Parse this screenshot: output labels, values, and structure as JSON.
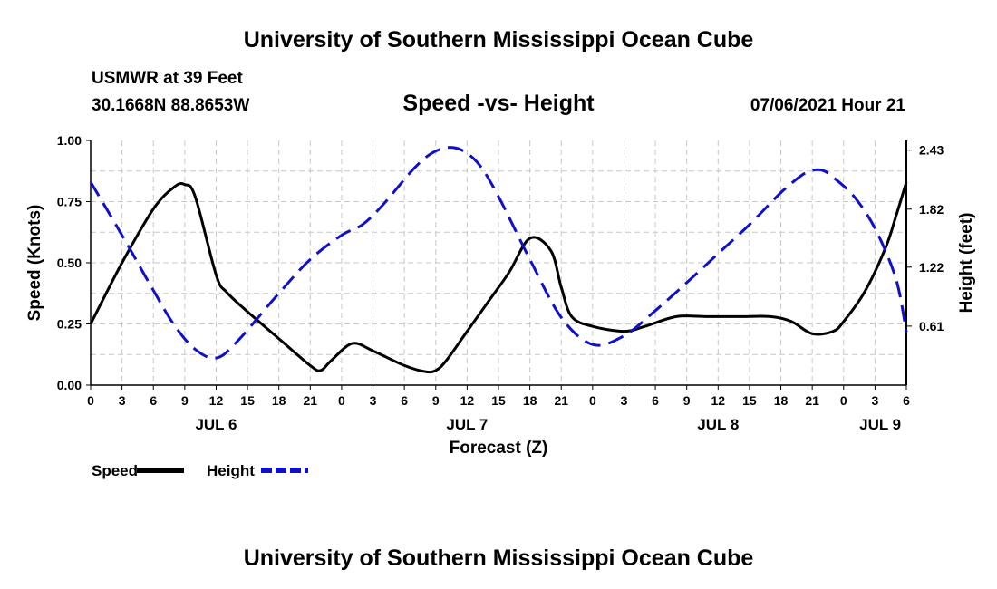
{
  "header": {
    "title": "University of Southern Mississippi Ocean Cube",
    "station": "USMWR at 39 Feet",
    "coords": "30.1668N  88.8653W",
    "date": "07/06/2021 Hour 21"
  },
  "footer": {
    "title": "University of Southern Mississippi Ocean Cube"
  },
  "chart_data": {
    "type": "line",
    "title": "Speed -vs- Height",
    "xlabel": "Forecast (Z)",
    "ylabel": "Speed (Knots)",
    "y2label": "Height (feet)",
    "xlim": [
      0,
      78
    ],
    "ylim": [
      0,
      1.0
    ],
    "y2lim": [
      0.0,
      2.53
    ],
    "x_tick_labels": [
      "0",
      "3",
      "6",
      "9",
      "12",
      "15",
      "18",
      "21",
      "0",
      "3",
      "6",
      "9",
      "12",
      "15",
      "18",
      "21",
      "0",
      "3",
      "6",
      "9",
      "12",
      "15",
      "18",
      "21",
      "0",
      "3",
      "6"
    ],
    "date_labels": [
      {
        "hour": 12,
        "label": "JUL 6"
      },
      {
        "hour": 36,
        "label": "JUL 7"
      },
      {
        "hour": 60,
        "label": "JUL 8"
      },
      {
        "hour": 75.5,
        "label": "JUL 9"
      }
    ],
    "y_ticks": [
      0.0,
      0.25,
      0.5,
      0.75,
      1.0
    ],
    "y_tick_labels": [
      "0.00",
      "0.25",
      "0.50",
      "0.75",
      "1.00"
    ],
    "y2_ticks": [
      0.61,
      1.22,
      1.82,
      2.43
    ],
    "y2_tick_labels": [
      "0.61",
      "1.22",
      "1.82",
      "2.43"
    ],
    "grid": true,
    "series": [
      {
        "name": "Speed",
        "axis": "left",
        "color": "#000000",
        "dash": "solid",
        "x": [
          0,
          3,
          6,
          8,
          9,
          10,
          12,
          13,
          15,
          18,
          21,
          22,
          23,
          25,
          27,
          30,
          32,
          33,
          34,
          36,
          38,
          40,
          42,
          44,
          45,
          46,
          48,
          51,
          53,
          56,
          59,
          62,
          65,
          67,
          69,
          71,
          72,
          74,
          76,
          77,
          78
        ],
        "values": [
          0.25,
          0.5,
          0.72,
          0.81,
          0.82,
          0.77,
          0.45,
          0.38,
          0.3,
          0.19,
          0.08,
          0.06,
          0.1,
          0.17,
          0.14,
          0.08,
          0.055,
          0.06,
          0.1,
          0.22,
          0.34,
          0.46,
          0.6,
          0.55,
          0.4,
          0.28,
          0.24,
          0.22,
          0.24,
          0.28,
          0.28,
          0.28,
          0.28,
          0.26,
          0.21,
          0.22,
          0.26,
          0.38,
          0.56,
          0.69,
          0.83
        ]
      },
      {
        "name": "Height",
        "axis": "right",
        "color": "#1010c8",
        "dash": "dashed",
        "x": [
          0,
          3,
          6,
          8,
          10,
          12,
          14,
          18,
          21,
          24,
          26,
          28,
          31,
          33,
          35,
          37,
          39,
          42,
          45,
          48,
          51,
          54,
          57,
          60,
          63,
          66,
          68,
          69,
          70,
          71,
          73,
          75,
          77,
          78
        ],
        "values": [
          2.1,
          1.55,
          0.98,
          0.62,
          0.37,
          0.28,
          0.45,
          0.95,
          1.3,
          1.55,
          1.66,
          1.87,
          2.25,
          2.42,
          2.45,
          2.3,
          1.95,
          1.3,
          0.7,
          0.42,
          0.51,
          0.77,
          1.06,
          1.36,
          1.66,
          1.99,
          2.17,
          2.22,
          2.22,
          2.15,
          1.95,
          1.62,
          1.1,
          0.55
        ]
      }
    ],
    "legend": [
      {
        "label": "Speed",
        "color": "#000000",
        "dash": "solid"
      },
      {
        "label": "Height",
        "color": "#1010c8",
        "dash": "dashed"
      }
    ]
  }
}
